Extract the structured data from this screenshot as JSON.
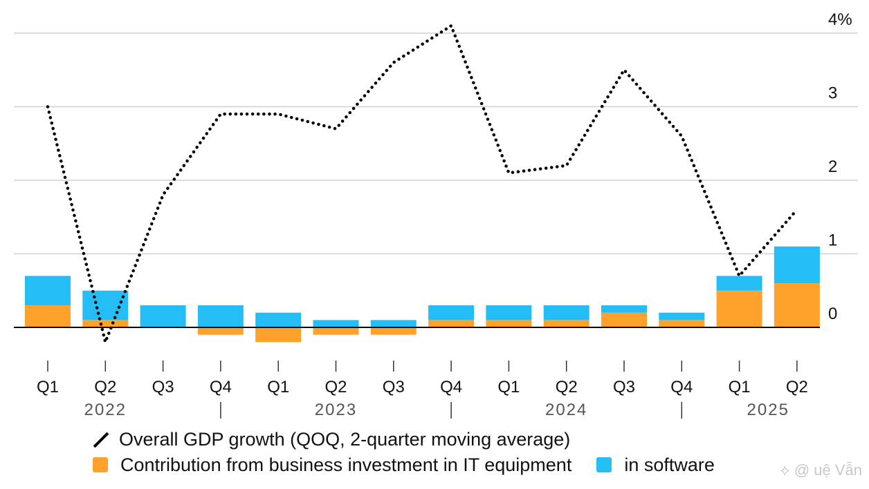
{
  "chart_data": {
    "type": "bar",
    "categories": [
      "Q1",
      "Q2",
      "Q3",
      "Q4",
      "Q1",
      "Q2",
      "Q3",
      "Q4",
      "Q1",
      "Q2",
      "Q3",
      "Q4",
      "Q1",
      "Q2"
    ],
    "years": [
      "2022",
      "2023",
      "2024",
      "2025"
    ],
    "series": [
      {
        "name": "Contribution from business investment in IT equipment",
        "color": "#ffa22b",
        "values": [
          0.3,
          0.1,
          0.0,
          -0.1,
          -0.2,
          -0.1,
          -0.1,
          0.1,
          0.1,
          0.1,
          0.2,
          0.1,
          0.5,
          0.6
        ]
      },
      {
        "name": "in software",
        "color": "#25bdf5",
        "values": [
          0.4,
          0.4,
          0.3,
          0.3,
          0.2,
          0.1,
          0.1,
          0.2,
          0.2,
          0.2,
          0.1,
          0.1,
          0.2,
          0.5
        ]
      },
      {
        "name": "Overall GDP growth (QOQ, 2-quarter moving average)",
        "type": "line",
        "style": "dotted",
        "color": "#000000",
        "values": [
          3.0,
          -0.2,
          1.8,
          2.9,
          2.9,
          2.7,
          3.6,
          4.1,
          2.1,
          2.2,
          3.5,
          2.6,
          0.7,
          1.6
        ]
      }
    ],
    "ylim": [
      -0.3,
      4.0
    ],
    "yticks": [
      "0",
      "1",
      "2",
      "3",
      "4%"
    ],
    "ytick_values": [
      0,
      1,
      2,
      3,
      4
    ],
    "grid": true,
    "legend_position": "bottom-left"
  },
  "legend": {
    "line_label": "Overall GDP growth (QOQ, 2-quarter moving average)",
    "equipment_label": "Contribution from business investment in IT equipment",
    "software_label": "in software"
  },
  "watermark": "⟡ @ uệ Vẫn"
}
